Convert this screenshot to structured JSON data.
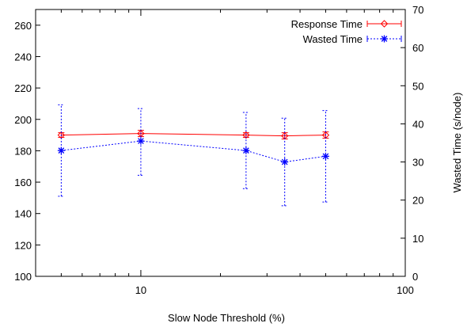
{
  "chart_data": {
    "type": "line",
    "xlabel": "Slow Node Threshold (%)",
    "ylabel_left": "",
    "ylabel_right": "Wasted Time (s/node)",
    "x_scale": "log",
    "xlim": [
      4,
      100
    ],
    "x_tick_labels": [
      "10",
      "100"
    ],
    "x_ticks": [
      10,
      100
    ],
    "ylim_left": [
      100,
      270
    ],
    "yticks_left": [
      100,
      120,
      140,
      160,
      180,
      200,
      220,
      240,
      260
    ],
    "ylim_right": [
      0,
      70
    ],
    "yticks_right": [
      0,
      10,
      20,
      30,
      40,
      50,
      60,
      70
    ],
    "legend_position": "top-right",
    "series": [
      {
        "name": "Response Time",
        "axis": "left",
        "color": "#ff0000",
        "marker": "diamond",
        "line_style": "solid",
        "x": [
          5,
          10,
          25,
          35,
          50
        ],
        "y": [
          190,
          191,
          190,
          189.5,
          190
        ],
        "err": [
          1.5,
          2,
          1.5,
          2,
          2
        ]
      },
      {
        "name": "Wasted Time",
        "axis": "right",
        "color": "#0000ff",
        "marker": "star",
        "line_style": "dotted",
        "x": [
          5,
          10,
          25,
          35,
          50
        ],
        "y": [
          33,
          35.5,
          33,
          30,
          31.5
        ],
        "err_low": [
          12,
          9,
          10,
          11.5,
          12
        ],
        "err_high": [
          12,
          8.5,
          10,
          11.5,
          12
        ]
      }
    ]
  }
}
